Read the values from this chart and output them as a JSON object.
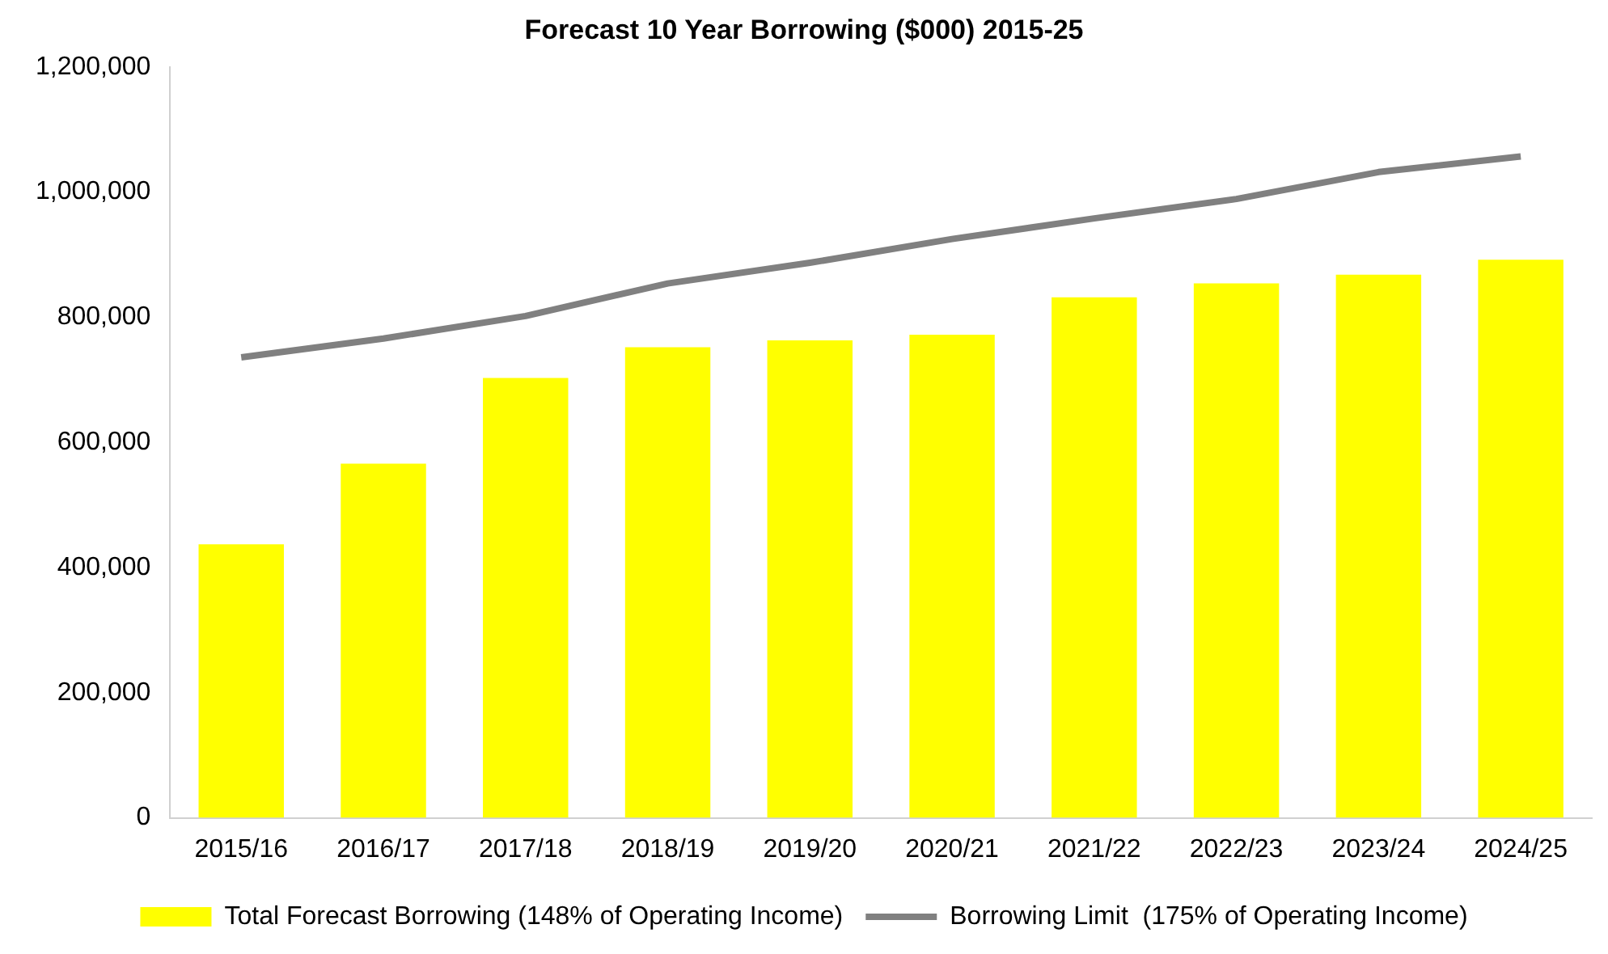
{
  "chart_data": {
    "type": "bar",
    "title": "Forecast 10 Year Borrowing ($000) 2015-25",
    "categories": [
      "2015/16",
      "2016/17",
      "2017/18",
      "2018/19",
      "2019/20",
      "2020/21",
      "2021/22",
      "2022/23",
      "2023/24",
      "2024/25"
    ],
    "series": [
      {
        "name": "Total Forecast Borrowing (148% of Operating Income)",
        "color": "#ffff00",
        "values": [
          437000,
          566000,
          703000,
          752000,
          763000,
          772000,
          832000,
          854000,
          868000,
          892000
        ]
      },
      {
        "name": "Borrowing Limit  (175% of Operating Income)",
        "type": "line",
        "color": "#808080",
        "marker": "none",
        "values": [
          736000,
          766000,
          802000,
          854000,
          887000,
          925000,
          958000,
          989000,
          1032000,
          1057000
        ]
      }
    ],
    "ylim": [
      0,
      1200000
    ],
    "yticks": [
      0,
      {
        "value": 200000,
        "label": "200,000"
      },
      {
        "value": 400000,
        "label": "400,000"
      },
      {
        "value": 600000,
        "label": "600,000"
      },
      {
        "value": 800000,
        "label": "800,000"
      },
      {
        "value": 1000000,
        "label": "1,000,000"
      },
      {
        "value": 1200000,
        "label": "1,200,000"
      }
    ],
    "grid": false,
    "legend": "bottom"
  }
}
